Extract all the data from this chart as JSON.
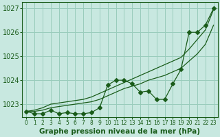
{
  "title": "Graphe pression niveau de la mer (hPa)",
  "background_color": "#c8e8e0",
  "grid_color": "#99ccbb",
  "line_color": "#1a5c1a",
  "x_values": [
    0,
    1,
    2,
    3,
    4,
    5,
    6,
    7,
    8,
    9,
    10,
    11,
    12,
    13,
    14,
    15,
    16,
    17,
    18,
    19,
    20,
    21,
    22,
    23
  ],
  "series_main": [
    1022.7,
    1022.6,
    1022.6,
    1022.75,
    1022.6,
    1022.65,
    1022.6,
    1022.6,
    1022.65,
    1022.85,
    1023.8,
    1024.0,
    1024.0,
    1023.85,
    1023.5,
    1023.55,
    1023.2,
    1023.2,
    1023.85,
    1024.45,
    1026.0,
    1026.0,
    1026.3,
    1027.0
  ],
  "series_upper": [
    1022.7,
    1022.75,
    1022.85,
    1023.0,
    1023.05,
    1023.1,
    1023.15,
    1023.2,
    1023.3,
    1023.45,
    1023.6,
    1023.75,
    1023.9,
    1024.05,
    1024.2,
    1024.35,
    1024.5,
    1024.65,
    1024.8,
    1024.95,
    1025.3,
    1025.7,
    1026.1,
    1026.95
  ],
  "series_lower": [
    1022.7,
    1022.7,
    1022.75,
    1022.85,
    1022.9,
    1022.95,
    1023.0,
    1023.05,
    1023.1,
    1023.2,
    1023.35,
    1023.5,
    1023.65,
    1023.75,
    1023.85,
    1024.0,
    1024.1,
    1024.2,
    1024.35,
    1024.5,
    1024.8,
    1025.1,
    1025.5,
    1026.3
  ],
  "ylim": [
    1022.45,
    1027.25
  ],
  "yticks": [
    1023,
    1024,
    1025,
    1026,
    1027
  ],
  "ylabel_fontsize": 7,
  "title_fontsize": 7.5,
  "marker_size": 3.0
}
